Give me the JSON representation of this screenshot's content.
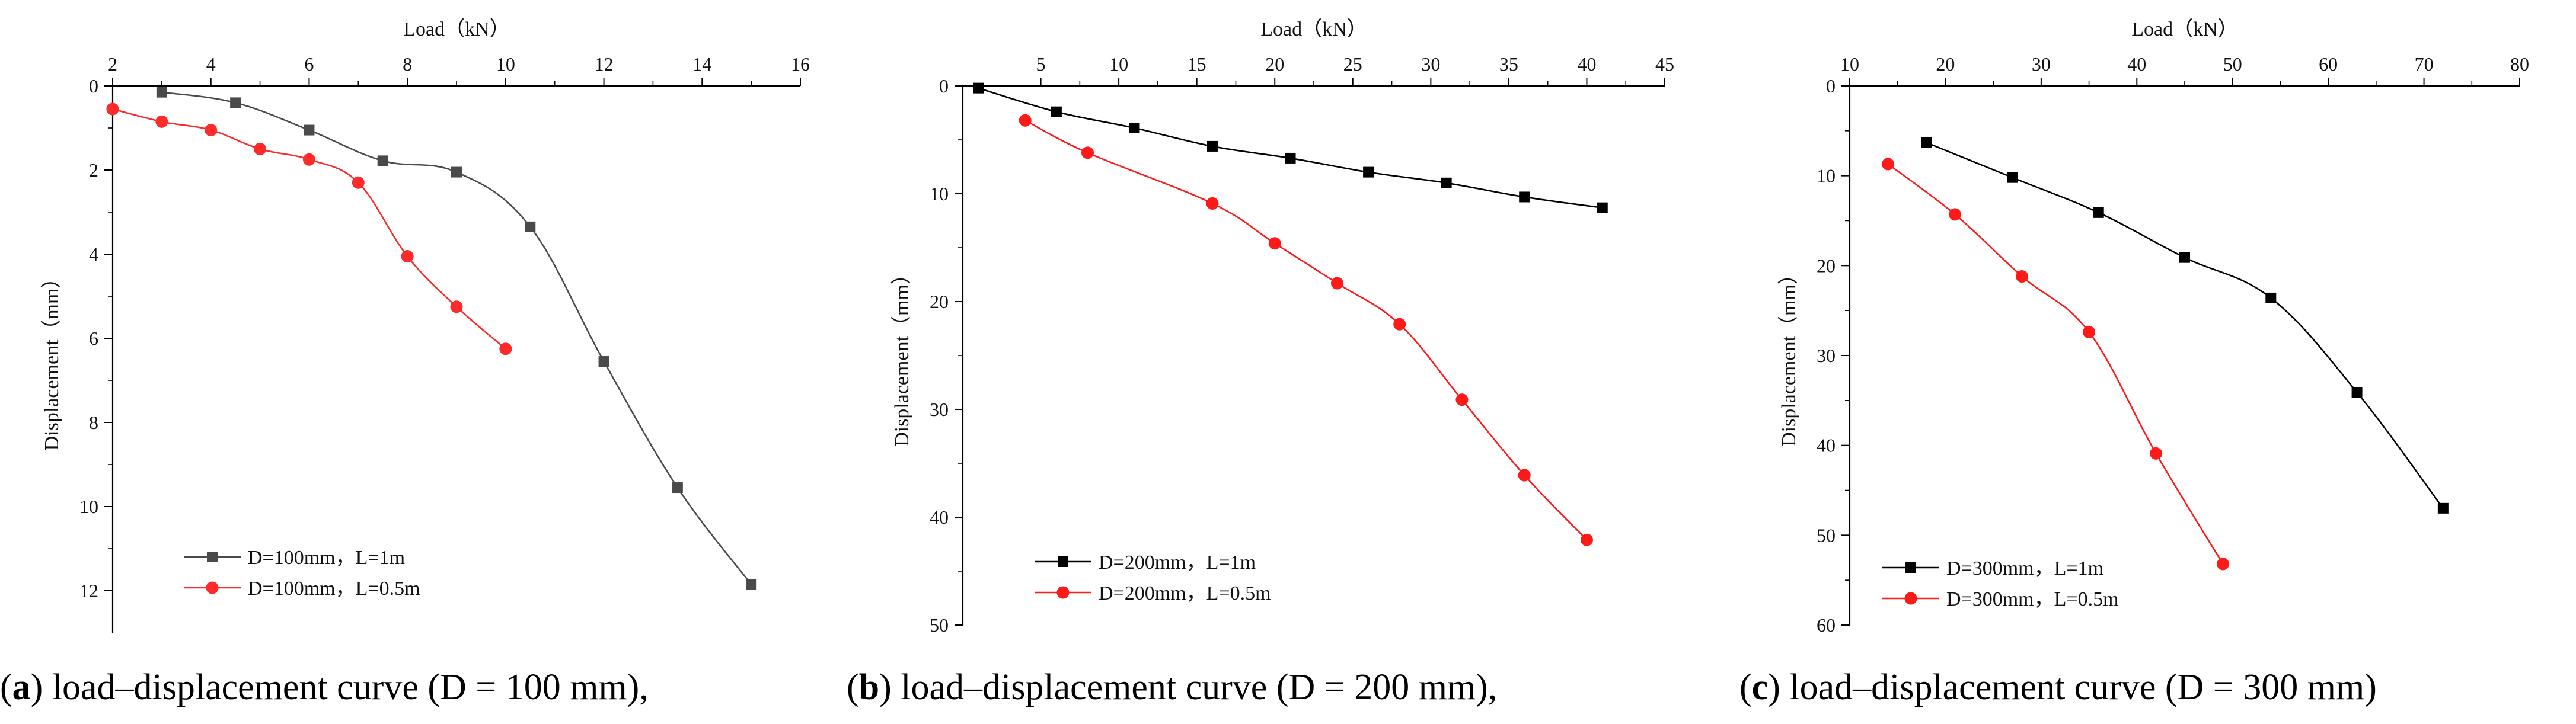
{
  "figure_captions": [
    {
      "letter": "a",
      "text": " load–displacement curve (D = 100 mm),"
    },
    {
      "letter": "b",
      "text": " load–displacement curve (D = 200 mm),"
    },
    {
      "letter": "c",
      "text": " load–displacement curve (D = 300 mm)"
    }
  ],
  "chart_data": [
    {
      "type": "line",
      "title": "",
      "xlabel": "Load（kN）",
      "ylabel": "Displacement（mm）",
      "xlim": [
        2,
        16
      ],
      "ylim": [
        0,
        13
      ],
      "y_inverted": true,
      "x_axis_position": "top",
      "xticks": [
        "2",
        "4",
        "6",
        "8",
        "10",
        "12",
        "14",
        "16"
      ],
      "yticks": [
        "0",
        "2",
        "4",
        "6",
        "8",
        "10",
        "12"
      ],
      "legend_position": "bottom-left",
      "series": [
        {
          "name": "D=100mm，L=1m",
          "color": "#4a4a4a",
          "marker": "square",
          "x": [
            3,
            4.5,
            6,
            7.5,
            9,
            10.5,
            12,
            13.5,
            15
          ],
          "y": [
            0.15,
            0.4,
            1.05,
            1.78,
            2.05,
            3.35,
            6.55,
            9.55,
            11.85
          ]
        },
        {
          "name": "D=100mm，L=0.5m",
          "color": "#ff2a2a",
          "marker": "circle",
          "x": [
            2,
            3,
            4,
            5,
            6,
            7,
            8,
            9,
            10
          ],
          "y": [
            0.55,
            0.85,
            1.05,
            1.5,
            1.75,
            2.3,
            4.05,
            5.25,
            6.25
          ]
        }
      ]
    },
    {
      "type": "line",
      "title": "",
      "xlabel": "Load（kN）",
      "ylabel": "Displacement（mm）",
      "xlim": [
        0,
        45
      ],
      "ylim": [
        0,
        50
      ],
      "y_inverted": true,
      "x_axis_position": "top",
      "xticks": [
        "5",
        "10",
        "15",
        "20",
        "25",
        "30",
        "35",
        "40",
        "45"
      ],
      "yticks": [
        "0",
        "10",
        "20",
        "30",
        "40",
        "50"
      ],
      "legend_position": "bottom-left",
      "series": [
        {
          "name": "D=200mm，L=1m",
          "color": "#000000",
          "marker": "square",
          "x": [
            1,
            6,
            11,
            16,
            21,
            26,
            31,
            36,
            41
          ],
          "y": [
            0.2,
            2.4,
            3.9,
            5.6,
            6.7,
            8.0,
            9.0,
            10.3,
            11.3
          ]
        },
        {
          "name": "D=200mm，L=0.5m",
          "color": "#ff1a1a",
          "marker": "circle",
          "x": [
            4,
            8,
            16,
            20,
            24,
            28,
            32,
            36,
            40
          ],
          "y": [
            3.2,
            6.2,
            10.9,
            14.6,
            18.3,
            22.1,
            29.1,
            36.1,
            42.1
          ]
        }
      ]
    },
    {
      "type": "line",
      "title": "",
      "xlabel": "Load（kN）",
      "ylabel": "Displacement（mm）",
      "xlim": [
        10,
        80
      ],
      "ylim": [
        0,
        60
      ],
      "y_inverted": true,
      "x_axis_position": "top",
      "xticks": [
        "10",
        "20",
        "30",
        "40",
        "50",
        "60",
        "70",
        "80"
      ],
      "yticks": [
        "0",
        "10",
        "20",
        "30",
        "40",
        "50",
        "60"
      ],
      "legend_position": "bottom-left",
      "series": [
        {
          "name": "D=300mm，L=1m",
          "color": "#000000",
          "marker": "square",
          "x": [
            18,
            27,
            36,
            45,
            54,
            63,
            72
          ],
          "y": [
            6.3,
            10.2,
            14.1,
            19.1,
            23.6,
            34.1,
            47.0
          ]
        },
        {
          "name": "D=300mm，L=0.5m",
          "color": "#ff1a1a",
          "marker": "circle",
          "x": [
            14,
            21,
            28,
            35,
            42,
            49
          ],
          "y": [
            8.7,
            14.3,
            21.2,
            27.4,
            40.9,
            53.2
          ]
        }
      ]
    }
  ]
}
